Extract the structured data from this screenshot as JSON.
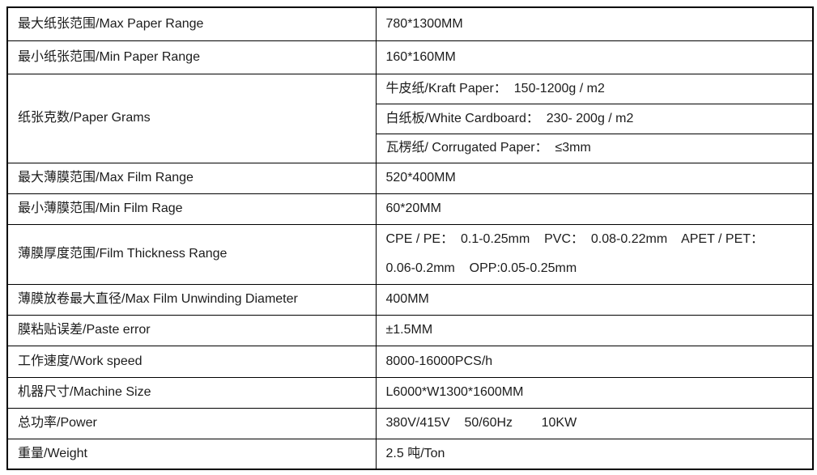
{
  "table": {
    "rows": [
      {
        "label": "最大纸张范围/Max Paper Range",
        "value": "780*1300MM"
      },
      {
        "label": "最小纸张范围/Min Paper Range",
        "value": "160*160MM"
      },
      {
        "label": "纸张克数/Paper Grams",
        "values": [
          "牛皮纸/Kraft Paper：  150-1200g / m2",
          "白纸板/White Cardboard：  230- 200g / m2",
          "瓦楞纸/ Corrugated Paper：  ≤3mm"
        ]
      },
      {
        "label": "最大薄膜范围/Max Film Range",
        "value": "520*400MM"
      },
      {
        "label": "最小薄膜范围/Min Film Rage",
        "value": "60*20MM"
      },
      {
        "label": "薄膜厚度范围/Film Thickness Range",
        "value": "CPE / PE：  0.1-0.25mm    PVC：  0.08-0.22mm    APET / PET：\n0.06-0.2mm    OPP:0.05-0.25mm"
      },
      {
        "label": "薄膜放卷最大直径/Max Film Unwinding Diameter",
        "value": "400MM"
      },
      {
        "label": "膜粘贴误差/Paste error",
        "value": "±1.5MM"
      },
      {
        "label": "工作速度/Work speed",
        "value": "8000-16000PCS/h"
      },
      {
        "label": "机器尺寸/Machine Size",
        "value": "L6000*W1300*1600MM"
      },
      {
        "label": "总功率/Power",
        "value": "380V/415V    50/60Hz        10KW"
      },
      {
        "label": "重量/Weight",
        "value": "2.5 吨/Ton"
      }
    ]
  }
}
